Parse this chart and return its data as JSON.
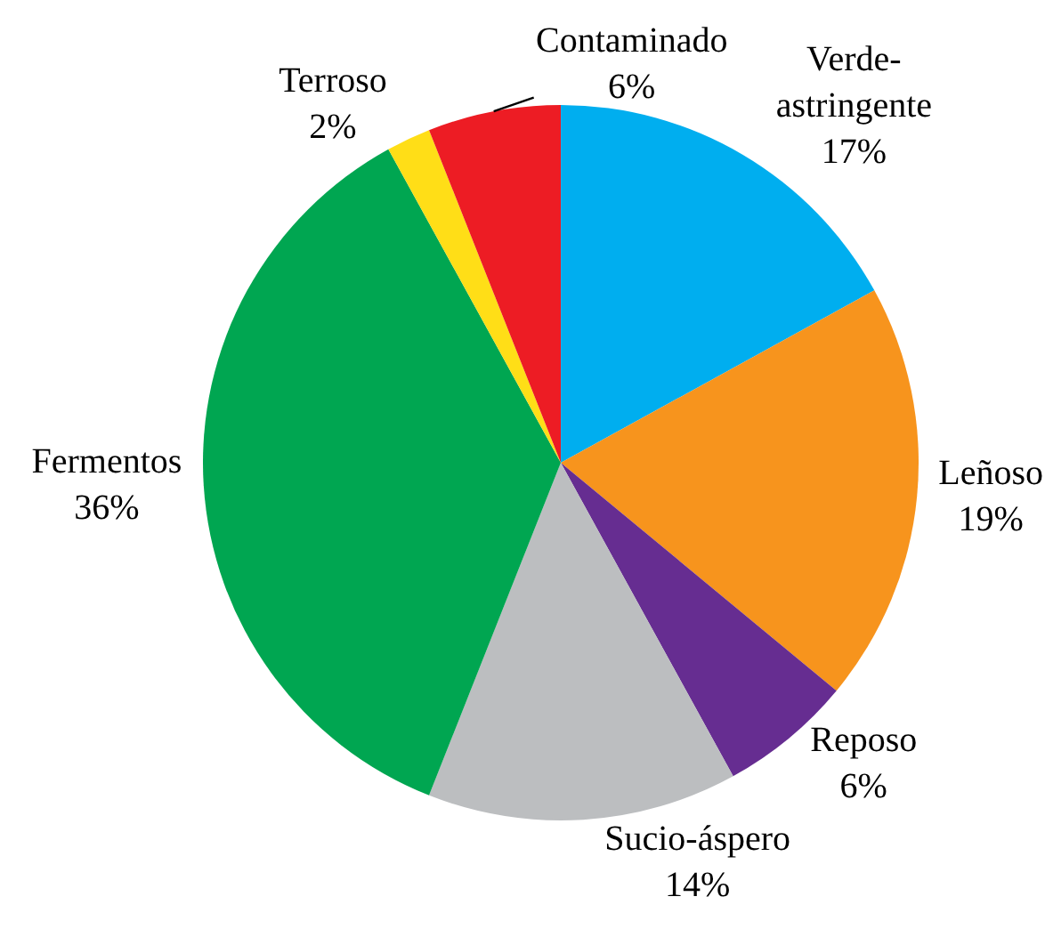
{
  "chart_data": {
    "type": "pie",
    "categories": [
      "Verde-\nastringente",
      "Leñoso",
      "Reposo",
      "Sucio-áspero",
      "Fermentos",
      "Terroso",
      "Contaminado"
    ],
    "values": [
      17,
      19,
      6,
      14,
      36,
      2,
      6
    ],
    "value_labels": [
      "17%",
      "19%",
      "6%",
      "14%",
      "36%",
      "2%",
      "6%"
    ],
    "colors": [
      "#00aeef",
      "#f7941d",
      "#662d91",
      "#bcbec0",
      "#00a651",
      "#ffde17",
      "#ed1c24"
    ],
    "legend": false
  }
}
